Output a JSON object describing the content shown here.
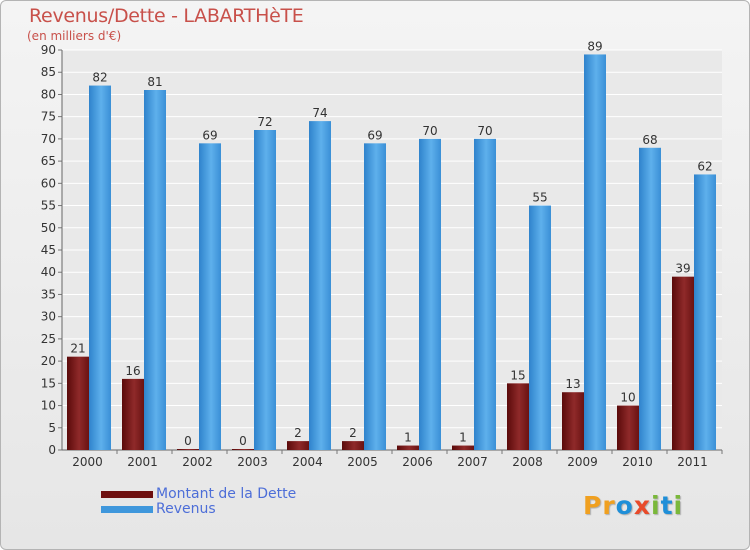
{
  "header": {
    "title": "Revenus/Dette - LABARTHèTE",
    "subtitle": "(en milliers d'€)"
  },
  "chart_data": {
    "type": "bar",
    "title": "Revenus/Dette - LABARTHèTE",
    "subtitle": "(en milliers d'€)",
    "xlabel": "",
    "ylabel": "",
    "categories": [
      "2000",
      "2001",
      "2002",
      "2003",
      "2004",
      "2005",
      "2006",
      "2007",
      "2008",
      "2009",
      "2010",
      "2011"
    ],
    "series": [
      {
        "name": "Montant de la Dette",
        "color": "#7a1a1a",
        "values": [
          21,
          16,
          0,
          0,
          2,
          2,
          1,
          1,
          15,
          13,
          10,
          39
        ]
      },
      {
        "name": "Revenus",
        "color": "#3f97dc",
        "values": [
          82,
          81,
          69,
          72,
          74,
          69,
          70,
          70,
          55,
          89,
          68,
          62
        ]
      }
    ],
    "ylim": [
      0,
      90
    ],
    "yticks": [
      0,
      5,
      10,
      15,
      20,
      25,
      30,
      35,
      40,
      45,
      50,
      55,
      60,
      65,
      70,
      75,
      80,
      85,
      90
    ],
    "grid": true,
    "data_labels": true,
    "legend_position": "bottom-left"
  },
  "legend": {
    "items": [
      {
        "label": "Montant de la Dette",
        "color": "#6e0f0f"
      },
      {
        "label": "Revenus",
        "color": "#3f97dc"
      }
    ]
  },
  "logo": {
    "letters": [
      {
        "char": "P",
        "color": "#f0a020"
      },
      {
        "char": "r",
        "color": "#f0a020"
      },
      {
        "char": "o",
        "color": "#1f8fd8"
      },
      {
        "char": "x",
        "color": "#e84a2a"
      },
      {
        "char": "i",
        "color": "#7ab83a"
      },
      {
        "char": "t",
        "color": "#1f8fd8"
      },
      {
        "char": "i",
        "color": "#7ab83a"
      }
    ]
  }
}
